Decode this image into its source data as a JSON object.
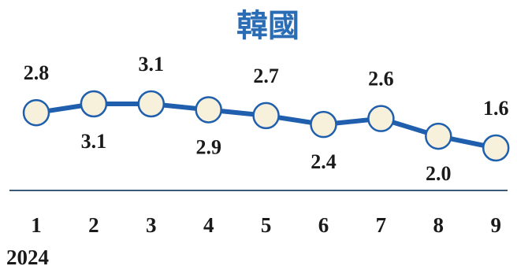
{
  "chart_data": {
    "type": "line",
    "title": "韓國",
    "categories": [
      "1",
      "2",
      "3",
      "4",
      "5",
      "6",
      "7",
      "8",
      "9"
    ],
    "x_group_label": "2024",
    "series": [
      {
        "values": [
          2.8,
          3.1,
          3.1,
          2.9,
          2.7,
          2.4,
          2.6,
          2.0,
          1.6
        ]
      }
    ],
    "data_labels": [
      "2.8",
      "3.1",
      "3.1",
      "2.9",
      "2.7",
      "2.4",
      "2.6",
      "2.0",
      "1.6"
    ],
    "grid": false,
    "legend": "none",
    "colors": {
      "title": "#2a6db5",
      "line": "#1f5fad",
      "marker_fill": "#f7f1dc",
      "marker_stroke": "#1f5fad",
      "axis": "#3a5a78"
    }
  }
}
